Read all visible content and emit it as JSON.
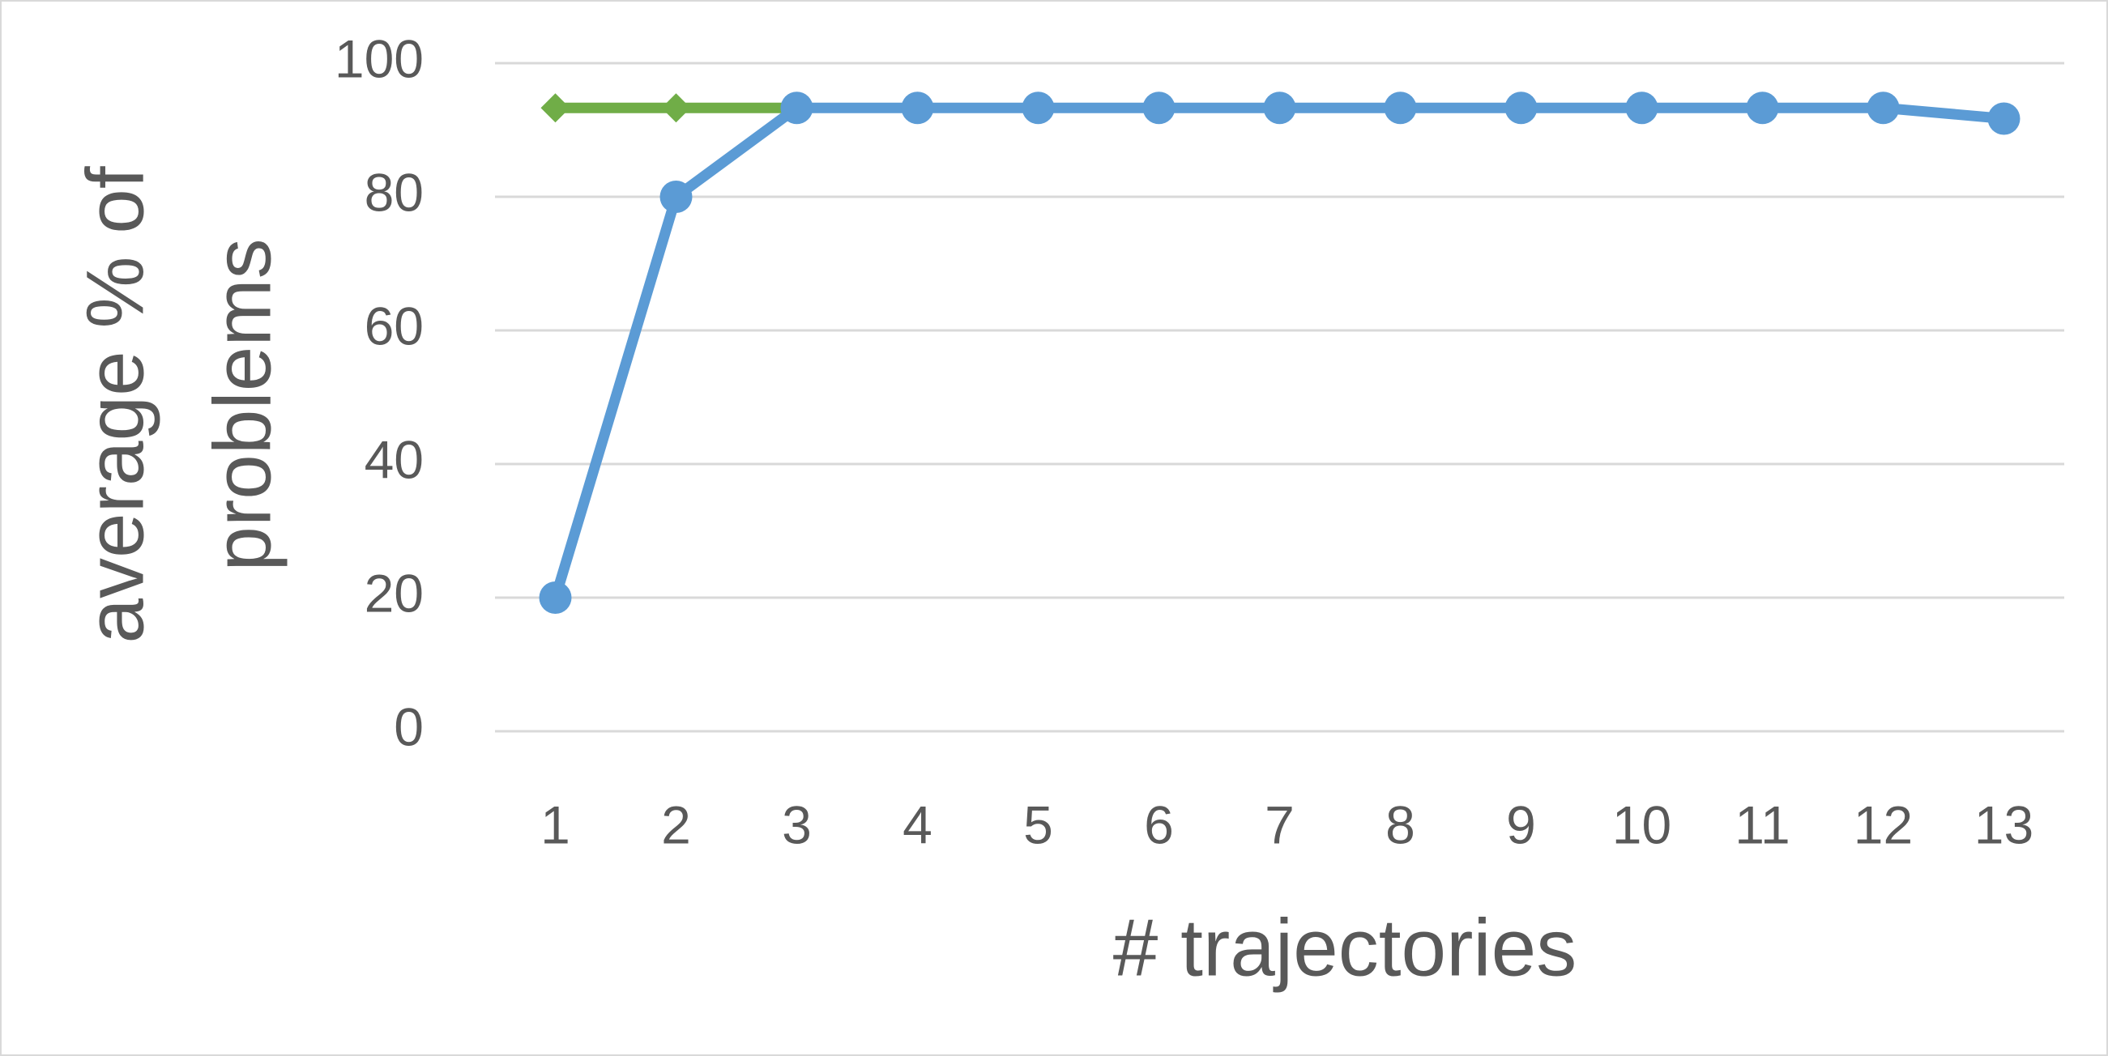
{
  "chart_data": {
    "type": "line",
    "ylabel": [
      "average % of",
      "problems"
    ],
    "xlabel": "# trajectories",
    "categories": [
      "1",
      "2",
      "3",
      "4",
      "5",
      "6",
      "7",
      "8",
      "9",
      "10",
      "11",
      "12",
      "13"
    ],
    "series": [
      {
        "color": "#70ad47",
        "marker": "diamond",
        "values": [
          93.3,
          93.3,
          93.3,
          null,
          null,
          null,
          null,
          null,
          null,
          null,
          null,
          null,
          null
        ]
      },
      {
        "color": "#5b9bd5",
        "marker": "circle",
        "values": [
          20,
          80,
          93.3,
          93.3,
          93.3,
          93.3,
          93.3,
          93.3,
          93.3,
          93.3,
          93.3,
          93.3,
          91.7
        ]
      }
    ],
    "ylim": [
      0,
      100
    ],
    "yticks": [
      0,
      20,
      40,
      60,
      80,
      100
    ],
    "grid": true
  }
}
